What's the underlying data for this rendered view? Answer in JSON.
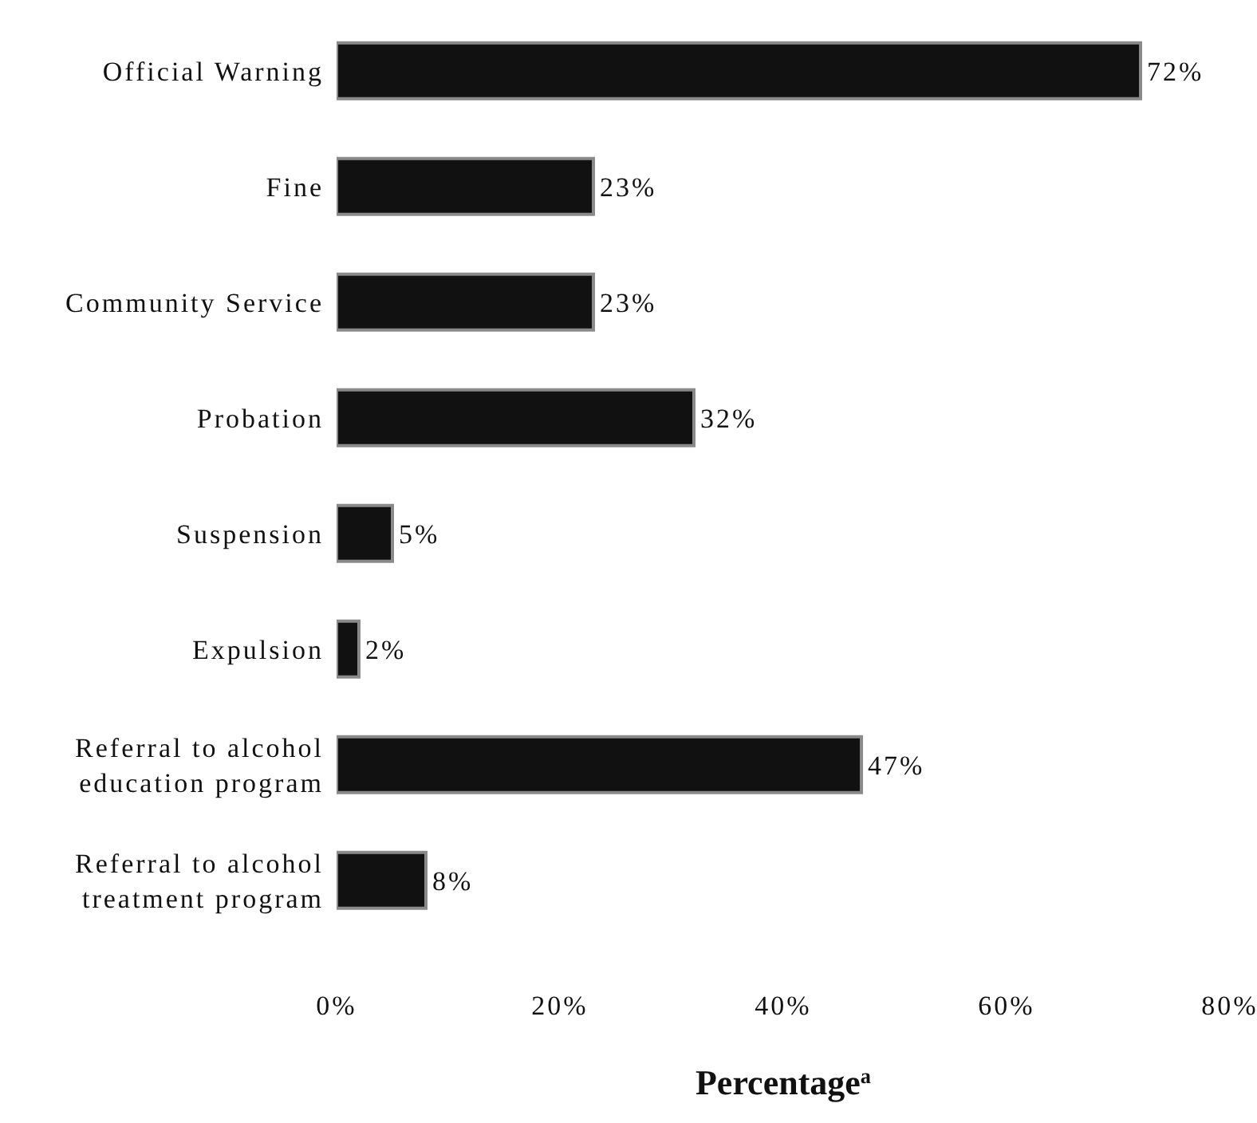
{
  "chart_data": {
    "type": "bar",
    "orientation": "horizontal",
    "xlabel": "Percentage$^{a}$",
    "categories": [
      "Official Warning",
      "Fine",
      "Community Service",
      "Probation",
      "Suspension",
      "Expulsion",
      "Referral to alcohol education program",
      "Referral to alcohol treatment program"
    ],
    "values": [
      72,
      23,
      23,
      32,
      5,
      2,
      47,
      8
    ],
    "value_labels": [
      "72%",
      "23%",
      "23%",
      "32%",
      "5%",
      "2%",
      "47%",
      "8%"
    ],
    "color": "#111111",
    "xlim": [
      0,
      80
    ],
    "xticks": [
      {
        "value": 0,
        "label": "0%"
      },
      {
        "value": 20,
        "label": "20%"
      },
      {
        "value": 40,
        "label": "40%"
      },
      {
        "value": 60,
        "label": "60%"
      },
      {
        "value": 80,
        "label": "80%"
      }
    ],
    "grid": false,
    "legend": false
  }
}
